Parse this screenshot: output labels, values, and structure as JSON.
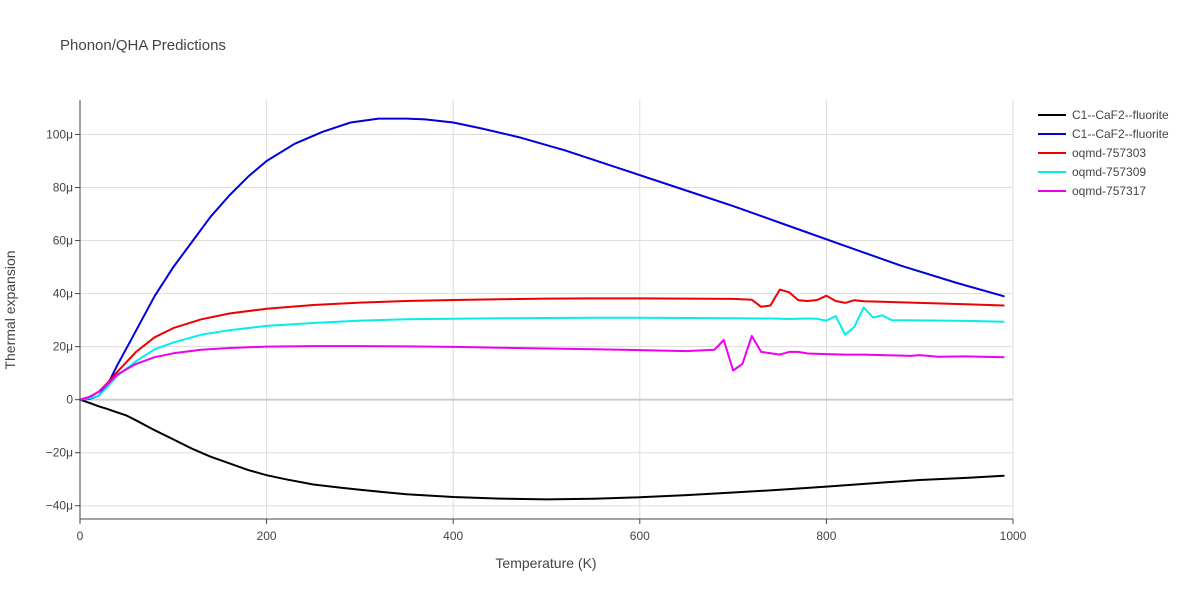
{
  "chart_data": {
    "type": "line",
    "title": "Phonon/QHA Predictions",
    "xlabel": "Temperature (K)",
    "ylabel": "Thermal expansion",
    "xlim": [
      0,
      1000
    ],
    "ylim": [
      -4.5e-05,
      0.000113
    ],
    "x_ticks": [
      0,
      200,
      400,
      600,
      800,
      1000
    ],
    "x_tick_labels": [
      "0",
      "200",
      "400",
      "600",
      "800",
      "1000"
    ],
    "y_ticks": [
      -4e-05,
      -2e-05,
      0,
      2e-05,
      4e-05,
      6e-05,
      8e-05,
      0.0001
    ],
    "y_tick_labels": [
      "−40μ",
      "−20μ",
      "0",
      "20μ",
      "40μ",
      "60μ",
      "80μ",
      "100μ"
    ],
    "grid": true,
    "legend_position": "top-right",
    "series": [
      {
        "name": "C1--CaF2--fluorite",
        "color": "#000000",
        "x": [
          0,
          10,
          20,
          30,
          40,
          50,
          60,
          80,
          100,
          120,
          140,
          160,
          180,
          200,
          220,
          250,
          280,
          300,
          350,
          400,
          450,
          500,
          550,
          600,
          650,
          700,
          750,
          800,
          850,
          900,
          950,
          990
        ],
        "y": [
          0,
          -1.2e-06,
          -2.5e-06,
          -3.6e-06,
          -4.8e-06,
          -6e-06,
          -7.8e-06,
          -1.15e-05,
          -1.5e-05,
          -1.85e-05,
          -2.15e-05,
          -2.4e-05,
          -2.65e-05,
          -2.85e-05,
          -3e-05,
          -3.2e-05,
          -3.32e-05,
          -3.4e-05,
          -3.57e-05,
          -3.67e-05,
          -3.73e-05,
          -3.76e-05,
          -3.74e-05,
          -3.68e-05,
          -3.6e-05,
          -3.5e-05,
          -3.4e-05,
          -3.28e-05,
          -3.15e-05,
          -3.03e-05,
          -2.95e-05,
          -2.87e-05
        ]
      },
      {
        "name": "C1--CaF2--fluorite",
        "color": "#0000dd",
        "x": [
          0,
          10,
          20,
          30,
          40,
          60,
          80,
          100,
          120,
          140,
          160,
          180,
          200,
          230,
          260,
          290,
          320,
          350,
          370,
          400,
          430,
          470,
          520,
          580,
          640,
          700,
          760,
          820,
          880,
          940,
          990
        ],
        "y": [
          0,
          3e-07,
          1.5e-06,
          6e-06,
          1.3e-05,
          2.6e-05,
          3.9e-05,
          5e-05,
          5.95e-05,
          6.9e-05,
          7.7e-05,
          8.4e-05,
          9e-05,
          9.65e-05,
          0.000101,
          0.0001045,
          0.000106,
          0.000106,
          0.0001057,
          0.0001045,
          0.0001023,
          9.9e-05,
          9.4e-05,
          8.7e-05,
          8e-05,
          7.3e-05,
          6.55e-05,
          5.8e-05,
          5.05e-05,
          4.4e-05,
          3.9e-05
        ]
      },
      {
        "name": "oqmd-757303",
        "color": "#ee0000",
        "x": [
          0,
          10,
          20,
          30,
          40,
          60,
          80,
          100,
          130,
          160,
          200,
          250,
          300,
          350,
          400,
          450,
          500,
          550,
          600,
          650,
          700,
          720,
          730,
          740,
          750,
          760,
          770,
          780,
          790,
          800,
          810,
          820,
          830,
          840,
          860,
          900,
          950,
          990
        ],
        "y": [
          0,
          1e-06,
          3e-06,
          6.5e-06,
          1.05e-05,
          1.8e-05,
          2.35e-05,
          2.7e-05,
          3.03e-05,
          3.25e-05,
          3.43e-05,
          3.57e-05,
          3.66e-05,
          3.72e-05,
          3.76e-05,
          3.79e-05,
          3.81e-05,
          3.82e-05,
          3.82e-05,
          3.81e-05,
          3.8e-05,
          3.77e-05,
          3.5e-05,
          3.55e-05,
          4.15e-05,
          4.05e-05,
          3.75e-05,
          3.72e-05,
          3.76e-05,
          3.92e-05,
          3.72e-05,
          3.65e-05,
          3.75e-05,
          3.71e-05,
          3.69e-05,
          3.65e-05,
          3.6e-05,
          3.55e-05
        ]
      },
      {
        "name": "oqmd-757309",
        "color": "#00eeee",
        "x": [
          0,
          10,
          20,
          30,
          40,
          60,
          80,
          100,
          130,
          160,
          200,
          250,
          300,
          350,
          400,
          450,
          500,
          550,
          600,
          650,
          700,
          740,
          760,
          780,
          790,
          800,
          810,
          820,
          830,
          840,
          850,
          860,
          870,
          900,
          950,
          990
        ],
        "y": [
          0,
          5e-07,
          1.5e-06,
          5e-06,
          9e-06,
          1.45e-05,
          1.9e-05,
          2.15e-05,
          2.45e-05,
          2.62e-05,
          2.78e-05,
          2.89e-05,
          2.98e-05,
          3.03e-05,
          3.05e-05,
          3.07e-05,
          3.08e-05,
          3.09e-05,
          3.09e-05,
          3.08e-05,
          3.07e-05,
          3.06e-05,
          3.04e-05,
          3.06e-05,
          3.05e-05,
          2.98e-05,
          3.15e-05,
          2.45e-05,
          2.75e-05,
          3.48e-05,
          3.1e-05,
          3.18e-05,
          3e-05,
          2.99e-05,
          2.97e-05,
          2.94e-05
        ]
      },
      {
        "name": "oqmd-757317",
        "color": "#ee00ee",
        "x": [
          0,
          10,
          20,
          30,
          40,
          60,
          80,
          100,
          130,
          160,
          200,
          250,
          300,
          350,
          400,
          450,
          500,
          550,
          600,
          650,
          680,
          690,
          700,
          710,
          720,
          730,
          750,
          760,
          770,
          780,
          800,
          820,
          840,
          860,
          890,
          900,
          920,
          950,
          990
        ],
        "y": [
          0,
          1e-06,
          3e-06,
          6e-06,
          9.5e-06,
          1.35e-05,
          1.6e-05,
          1.75e-05,
          1.88e-05,
          1.95e-05,
          2e-05,
          2.02e-05,
          2.02e-05,
          2.01e-05,
          1.99e-05,
          1.96e-05,
          1.93e-05,
          1.9e-05,
          1.87e-05,
          1.83e-05,
          1.88e-05,
          2.25e-05,
          1.1e-05,
          1.35e-05,
          2.4e-05,
          1.8e-05,
          1.7e-05,
          1.8e-05,
          1.8e-05,
          1.74e-05,
          1.72e-05,
          1.7e-05,
          1.7e-05,
          1.68e-05,
          1.65e-05,
          1.68e-05,
          1.62e-05,
          1.63e-05,
          1.6e-05
        ]
      }
    ]
  }
}
